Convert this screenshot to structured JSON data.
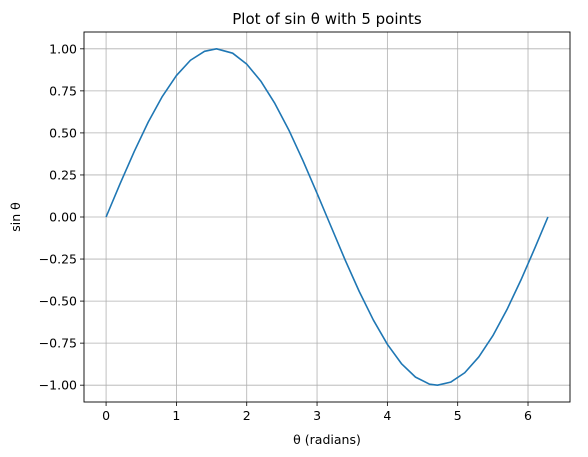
{
  "chart_data": {
    "type": "line",
    "title": "Plot of sin θ with 5 points",
    "xlabel": "θ (radians)",
    "ylabel": "sin θ",
    "xlim": [
      -0.314,
      6.597
    ],
    "ylim": [
      -1.1,
      1.1
    ],
    "x_ticks": [
      0,
      1,
      2,
      3,
      4,
      5,
      6
    ],
    "x_tick_labels": [
      "0",
      "1",
      "2",
      "3",
      "4",
      "5",
      "6"
    ],
    "y_ticks": [
      -1.0,
      -0.75,
      -0.5,
      -0.25,
      0.0,
      0.25,
      0.5,
      0.75,
      1.0
    ],
    "y_tick_labels": [
      "−1.00",
      "−0.75",
      "−0.50",
      "−0.25",
      "0.00",
      "0.25",
      "0.50",
      "0.75",
      "1.00"
    ],
    "grid": true,
    "series": [
      {
        "color": "#1f77b4",
        "x": [
          0,
          0.2,
          0.4,
          0.6,
          0.8,
          1.0,
          1.2,
          1.4,
          1.5708,
          1.8,
          2.0,
          2.2,
          2.4,
          2.6,
          2.8,
          3.0,
          3.1416,
          3.4,
          3.6,
          3.8,
          4.0,
          4.2,
          4.4,
          4.6,
          4.7124,
          4.9,
          5.1,
          5.3,
          5.5,
          5.7,
          5.9,
          6.1,
          6.2832
        ],
        "y": [
          0.0,
          0.199,
          0.389,
          0.565,
          0.717,
          0.841,
          0.932,
          0.985,
          1.0,
          0.974,
          0.909,
          0.808,
          0.675,
          0.516,
          0.335,
          0.141,
          0.0,
          -0.256,
          -0.443,
          -0.612,
          -0.757,
          -0.872,
          -0.952,
          -0.994,
          -1.0,
          -0.982,
          -0.926,
          -0.832,
          -0.706,
          -0.551,
          -0.374,
          -0.182,
          0.0
        ]
      }
    ]
  },
  "colors": {
    "grid": "#b0b0b0",
    "axes": "#000000"
  }
}
